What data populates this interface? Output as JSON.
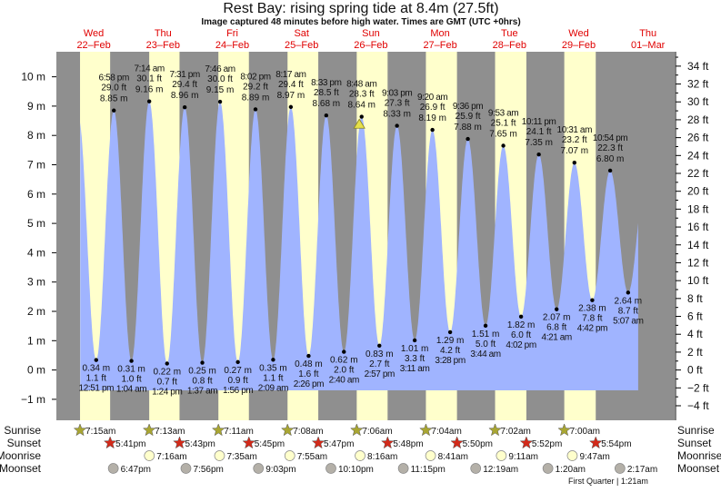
{
  "title": "Rest Bay: rising  spring tide at 8.4m (27.5ft)",
  "subtitle": "Image captured 48 minutes before high water. Times are GMT (UTC +0hrs)",
  "colors": {
    "night": "#8f8f8f",
    "day": "#ffffcc",
    "water": "#a0b4ff",
    "day_label": "#e00000",
    "sunrise": "#a9a632",
    "sunset": "#d22a1a",
    "moonrise": "#ffffcc",
    "moonset": "#b4b0a8"
  },
  "days": [
    {
      "dow": "Wed",
      "date": "22–Feb"
    },
    {
      "dow": "Thu",
      "date": "23–Feb"
    },
    {
      "dow": "Fri",
      "date": "24–Feb"
    },
    {
      "dow": "Sat",
      "date": "25–Feb"
    },
    {
      "dow": "Sun",
      "date": "26–Feb"
    },
    {
      "dow": "Mon",
      "date": "27–Feb"
    },
    {
      "dow": "Tue",
      "date": "28–Feb"
    },
    {
      "dow": "Wed",
      "date": "29–Feb"
    },
    {
      "dow": "Thu",
      "date": "01–Mar"
    }
  ],
  "rows": {
    "sunrise": "Sunrise",
    "sunset": "Sunset",
    "moonrise": "Moonrise",
    "moonset": "Moonset"
  },
  "sun": {
    "sunrise": [
      {
        "day": 0,
        "time": "7:15am"
      },
      {
        "day": 1,
        "time": "7:13am"
      },
      {
        "day": 2,
        "time": "7:11am"
      },
      {
        "day": 3,
        "time": "7:08am"
      },
      {
        "day": 4,
        "time": "7:06am"
      },
      {
        "day": 5,
        "time": "7:04am"
      },
      {
        "day": 6,
        "time": "7:02am"
      },
      {
        "day": 7,
        "time": "7:00am"
      }
    ],
    "sunset": [
      {
        "day": 0,
        "time": "5:41pm"
      },
      {
        "day": 1,
        "time": "5:43pm"
      },
      {
        "day": 2,
        "time": "5:45pm"
      },
      {
        "day": 3,
        "time": "5:47pm"
      },
      {
        "day": 4,
        "time": "5:48pm"
      },
      {
        "day": 5,
        "time": "5:50pm"
      },
      {
        "day": 6,
        "time": "5:52pm"
      },
      {
        "day": 7,
        "time": "5:54pm"
      }
    ]
  },
  "moon": {
    "moonrise": [
      {
        "day": 1,
        "time": "7:16am"
      },
      {
        "day": 2,
        "time": "7:35am"
      },
      {
        "day": 3,
        "time": "7:55am"
      },
      {
        "day": 4,
        "time": "8:16am"
      },
      {
        "day": 5,
        "time": "8:41am"
      },
      {
        "day": 6,
        "time": "9:11am"
      },
      {
        "day": 7,
        "time": "9:47am"
      }
    ],
    "moonset": [
      {
        "day": 0,
        "time": "6:47pm"
      },
      {
        "day": 1,
        "time": "7:56pm"
      },
      {
        "day": 2,
        "time": "9:03pm"
      },
      {
        "day": 3,
        "time": "10:10pm"
      },
      {
        "day": 4,
        "time": "11:15pm"
      },
      {
        "day": 6,
        "time": "12:19am"
      },
      {
        "day": 7,
        "time": "1:20am"
      },
      {
        "day": 8,
        "time": "2:17am"
      }
    ],
    "phase_note": "First Quarter | 1:21am"
  },
  "chart_data": {
    "type": "area",
    "title": "Rest Bay: rising  spring tide at 8.4m (27.5ft)",
    "left_axis": {
      "unit": "m",
      "ticks": [
        -1,
        0,
        1,
        2,
        3,
        4,
        5,
        6,
        7,
        8,
        9,
        10
      ]
    },
    "right_axis": {
      "unit": "ft",
      "ticks": [
        -4,
        -2,
        0,
        2,
        4,
        6,
        8,
        10,
        12,
        14,
        16,
        18,
        20,
        22,
        24,
        26,
        28,
        30,
        32,
        34
      ]
    },
    "ylim_m": [
      -1.3,
      11.2
    ],
    "current": {
      "day": 4,
      "time": "8:00 am",
      "height_m": 8.4
    },
    "extremes": [
      {
        "day": 0,
        "time": "12:51 pm",
        "type": "low",
        "m": "0.34",
        "ft": "1.1"
      },
      {
        "day": 0,
        "time": "6:58 pm",
        "type": "high",
        "m": "8.85",
        "ft": "29.0"
      },
      {
        "day": 1,
        "time": "1:04 am",
        "type": "low",
        "m": "0.31",
        "ft": "1.0"
      },
      {
        "day": 1,
        "time": "7:14 am",
        "type": "high",
        "m": "9.16",
        "ft": "30.1"
      },
      {
        "day": 1,
        "time": "1:24 pm",
        "type": "low",
        "m": "0.22",
        "ft": "0.7"
      },
      {
        "day": 1,
        "time": "7:31 pm",
        "type": "high",
        "m": "8.96",
        "ft": "29.4"
      },
      {
        "day": 2,
        "time": "1:37 am",
        "type": "low",
        "m": "0.25",
        "ft": "0.8"
      },
      {
        "day": 2,
        "time": "7:46 am",
        "type": "high",
        "m": "9.15",
        "ft": "30.0"
      },
      {
        "day": 2,
        "time": "1:56 pm",
        "type": "low",
        "m": "0.27",
        "ft": "0.9"
      },
      {
        "day": 2,
        "time": "8:02 pm",
        "type": "high",
        "m": "8.89",
        "ft": "29.2"
      },
      {
        "day": 3,
        "time": "2:09 am",
        "type": "low",
        "m": "0.35",
        "ft": "1.1"
      },
      {
        "day": 3,
        "time": "8:17 am",
        "type": "high",
        "m": "8.97",
        "ft": "29.4"
      },
      {
        "day": 3,
        "time": "2:26 pm",
        "type": "low",
        "m": "0.48",
        "ft": "1.6"
      },
      {
        "day": 3,
        "time": "8:33 pm",
        "type": "high",
        "m": "8.68",
        "ft": "28.5"
      },
      {
        "day": 4,
        "time": "2:40 am",
        "type": "low",
        "m": "0.62",
        "ft": "2.0"
      },
      {
        "day": 4,
        "time": "8:48 am",
        "type": "high",
        "m": "8.64",
        "ft": "28.3"
      },
      {
        "day": 4,
        "time": "2:57 pm",
        "type": "low",
        "m": "0.83",
        "ft": "2.7"
      },
      {
        "day": 4,
        "time": "9:03 pm",
        "type": "high",
        "m": "8.33",
        "ft": "27.3"
      },
      {
        "day": 5,
        "time": "3:11 am",
        "type": "low",
        "m": "1.01",
        "ft": "3.3"
      },
      {
        "day": 5,
        "time": "9:20 am",
        "type": "high",
        "m": "8.19",
        "ft": "26.9"
      },
      {
        "day": 5,
        "time": "3:28 pm",
        "type": "low",
        "m": "1.29",
        "ft": "4.2"
      },
      {
        "day": 5,
        "time": "9:36 pm",
        "type": "high",
        "m": "7.88",
        "ft": "25.9"
      },
      {
        "day": 6,
        "time": "3:44 am",
        "type": "low",
        "m": "1.51",
        "ft": "5.0"
      },
      {
        "day": 6,
        "time": "9:53 am",
        "type": "high",
        "m": "7.65",
        "ft": "25.1"
      },
      {
        "day": 6,
        "time": "4:02 pm",
        "type": "low",
        "m": "1.82",
        "ft": "6.0"
      },
      {
        "day": 6,
        "time": "10:11 pm",
        "type": "high",
        "m": "7.35",
        "ft": "24.1"
      },
      {
        "day": 7,
        "time": "4:21 am",
        "type": "low",
        "m": "2.07",
        "ft": "6.8"
      },
      {
        "day": 7,
        "time": "10:31 am",
        "type": "high",
        "m": "7.07",
        "ft": "23.2"
      },
      {
        "day": 7,
        "time": "4:42 pm",
        "type": "low",
        "m": "2.38",
        "ft": "7.8"
      },
      {
        "day": 7,
        "time": "10:54 pm",
        "type": "high",
        "m": "6.80",
        "ft": "22.3"
      },
      {
        "day": 8,
        "time": "5:07 am",
        "type": "low",
        "m": "2.64",
        "ft": "8.7"
      }
    ]
  }
}
